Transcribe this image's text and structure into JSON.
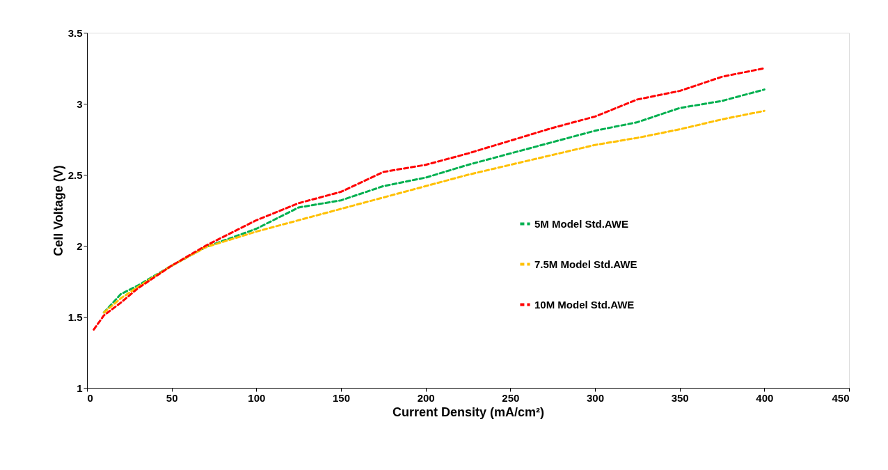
{
  "chart_data": {
    "type": "line",
    "xlabel": "Current Density (mA/cm²)",
    "ylabel": "Cell Voltage (V)",
    "xlim": [
      0,
      450
    ],
    "xticks": [
      0,
      50,
      100,
      150,
      200,
      250,
      300,
      350,
      400,
      450
    ],
    "ylim": [
      1,
      3.5
    ],
    "yticks": [
      1,
      1.5,
      2,
      2.5,
      3,
      3.5
    ],
    "x": [
      4,
      10,
      20,
      30,
      50,
      70,
      100,
      125,
      150,
      175,
      200,
      225,
      250,
      275,
      300,
      325,
      350,
      375,
      400
    ],
    "grid": false,
    "legend": "right",
    "line_style": "dashed",
    "marker": "none",
    "series": [
      {
        "name": "5M Model Std.AWE",
        "color": "#00b050",
        "values": [
          null,
          1.53,
          1.66,
          1.72,
          1.86,
          1.99,
          2.12,
          2.27,
          2.32,
          2.42,
          2.48,
          2.57,
          2.65,
          2.73,
          2.81,
          2.87,
          2.97,
          3.02,
          3.1
        ]
      },
      {
        "name": "7.5M Model Std.AWE",
        "color": "#ffc000",
        "values": [
          null,
          1.53,
          1.63,
          1.71,
          1.86,
          1.99,
          2.1,
          2.18,
          2.26,
          2.34,
          2.42,
          2.5,
          2.57,
          2.64,
          2.71,
          2.76,
          2.82,
          2.89,
          2.95
        ]
      },
      {
        "name": "10M Model Std.AWE",
        "color": "#ff0000",
        "values": [
          1.41,
          1.51,
          1.6,
          1.7,
          1.86,
          2.0,
          2.18,
          2.3,
          2.38,
          2.52,
          2.57,
          2.65,
          2.74,
          2.83,
          2.91,
          3.03,
          3.09,
          3.19,
          3.25
        ]
      }
    ]
  }
}
